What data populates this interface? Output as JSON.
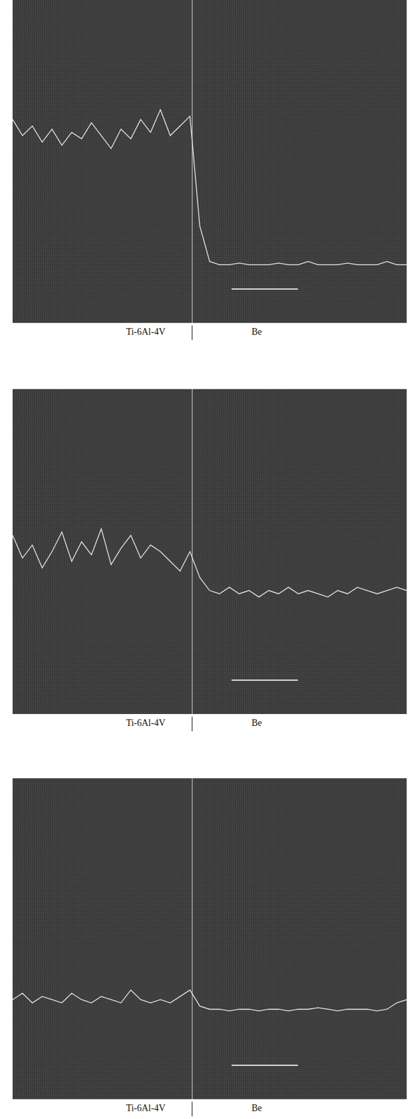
{
  "chart_data": [
    {
      "type": "line",
      "grid": false,
      "tick_labels": false,
      "color": "#e6e6e6",
      "region_labels": [
        "Ti-6Al-4V",
        "Be"
      ],
      "interface": 45.5,
      "xlim": [
        0,
        100
      ],
      "ylim": [
        0,
        100
      ],
      "x": [
        0,
        2.5,
        5,
        7.5,
        10,
        12.5,
        15,
        17.5,
        20,
        22.5,
        25,
        27.5,
        30,
        32.5,
        35,
        37.5,
        40,
        42.5,
        45,
        47.5,
        50,
        52.5,
        55,
        57.5,
        60,
        62.5,
        65,
        67.5,
        70,
        72.5,
        75,
        77.5,
        80,
        82.5,
        85,
        87.5,
        90,
        92.5,
        95,
        97.5,
        100
      ],
      "values": [
        63,
        58,
        61,
        56,
        60,
        55,
        59,
        57,
        62,
        58,
        54,
        60,
        57,
        63,
        59,
        66,
        58,
        61,
        64,
        30,
        19,
        18,
        18,
        18.5,
        18,
        18,
        18,
        18.5,
        18,
        18,
        19,
        18,
        18,
        18,
        18.5,
        18,
        18,
        18,
        19,
        18,
        18
      ]
    },
    {
      "type": "line",
      "grid": false,
      "tick_labels": false,
      "color": "#e6e6e6",
      "region_labels": [
        "Ti-6Al-4V",
        "Be"
      ],
      "interface": 45.5,
      "xlim": [
        0,
        100
      ],
      "ylim": [
        0,
        100
      ],
      "x": [
        0,
        2.5,
        5,
        7.5,
        10,
        12.5,
        15,
        17.5,
        20,
        22.5,
        25,
        27.5,
        30,
        32.5,
        35,
        37.5,
        40,
        42.5,
        45,
        47.5,
        50,
        52.5,
        55,
        57.5,
        60,
        62.5,
        65,
        67.5,
        70,
        72.5,
        75,
        77.5,
        80,
        82.5,
        85,
        87.5,
        90,
        92.5,
        95,
        97.5,
        100
      ],
      "values": [
        55,
        48,
        52,
        45,
        50,
        56,
        47,
        53,
        49,
        57,
        46,
        51,
        55,
        48,
        52,
        50,
        47,
        44,
        50,
        42,
        38,
        37,
        39,
        37,
        38,
        36,
        38,
        37,
        39,
        37,
        38,
        37,
        36,
        38,
        37,
        39,
        38,
        37,
        38,
        39,
        38
      ]
    },
    {
      "type": "line",
      "grid": false,
      "tick_labels": false,
      "color": "#e6e6e6",
      "region_labels": [
        "Ti-6Al-4V",
        "Be"
      ],
      "interface": 45.5,
      "xlim": [
        0,
        100
      ],
      "ylim": [
        0,
        100
      ],
      "x": [
        0,
        2.5,
        5,
        7.5,
        10,
        12.5,
        15,
        17.5,
        20,
        22.5,
        25,
        27.5,
        30,
        32.5,
        35,
        37.5,
        40,
        42.5,
        45,
        47.5,
        50,
        52.5,
        55,
        57.5,
        60,
        62.5,
        65,
        67.5,
        70,
        72.5,
        75,
        77.5,
        80,
        82.5,
        85,
        87.5,
        90,
        92.5,
        95,
        97.5,
        100
      ],
      "values": [
        31,
        33,
        30,
        32,
        31,
        30,
        33,
        31,
        30,
        32,
        31,
        30,
        34,
        31,
        30,
        31,
        30,
        32,
        34,
        29,
        28,
        28,
        27.5,
        28,
        28,
        27.5,
        28,
        28,
        27.5,
        28,
        28,
        28.5,
        28,
        27.5,
        28,
        28,
        28,
        27.5,
        28,
        30,
        31
      ]
    }
  ]
}
